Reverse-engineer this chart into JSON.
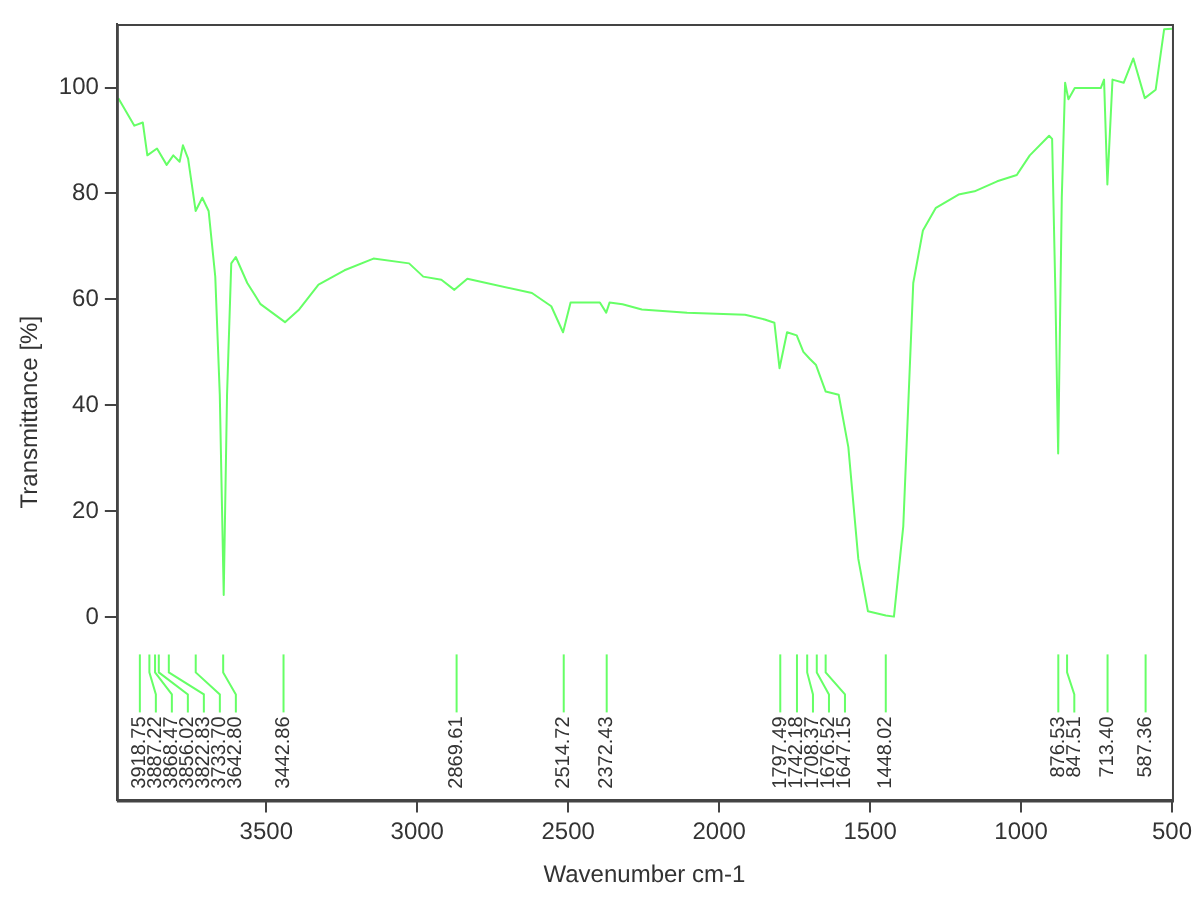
{
  "chart_data": {
    "type": "line",
    "xlabel": "Wavenumber cm-1",
    "ylabel": "Transmittance [%]",
    "xlim": [
      3995,
      500
    ],
    "xticks": [
      3500,
      3000,
      2500,
      2000,
      1500,
      1000,
      500
    ],
    "ylim": [
      -34.6,
      112
    ],
    "yticks": [
      0,
      20,
      40,
      60,
      80,
      100
    ],
    "grid": false,
    "legend": false,
    "marker": "none",
    "line_style": "solid",
    "series": [
      {
        "color": "#66ff66",
        "x": [
          3990,
          3937,
          3909,
          3894,
          3862,
          3830,
          3808,
          3787,
          3776,
          3759,
          3734,
          3712,
          3691,
          3669,
          3654,
          3641,
          3630,
          3616,
          3601,
          3563,
          3519,
          3438,
          3391,
          3327,
          3241,
          3145,
          3027,
          2980,
          2920,
          2877,
          2834,
          2620,
          2556,
          2517,
          2492,
          2395,
          2374,
          2363,
          2320,
          2256,
          2106,
          1914,
          1849,
          1817,
          1800,
          1775,
          1743,
          1721,
          1700,
          1679,
          1647,
          1604,
          1572,
          1539,
          1507,
          1448,
          1421,
          1390,
          1357,
          1325,
          1282,
          1207,
          1154,
          1079,
          1014,
          971,
          907,
          897,
          886,
          877,
          865,
          854,
          843,
          822,
          736,
          725,
          714,
          697,
          660,
          628,
          590,
          554,
          526,
          500
        ],
        "values": [
          98.0,
          92.8,
          93.4,
          87.2,
          88.5,
          85.4,
          87.2,
          86.0,
          89.1,
          86.6,
          76.7,
          79.2,
          76.7,
          64.3,
          42,
          4.2,
          42,
          66.8,
          68.0,
          63.1,
          59.1,
          55.7,
          58.1,
          62.8,
          65.5,
          67.7,
          66.8,
          64.3,
          63.7,
          61.8,
          63.9,
          61.2,
          58.7,
          53.8,
          59.4,
          59.4,
          57.5,
          59.4,
          59.1,
          58.1,
          57.5,
          57.1,
          56.2,
          55.6,
          47.0,
          53.8,
          53.2,
          50.1,
          48.8,
          47.6,
          42.6,
          42.0,
          32.1,
          11.0,
          1.1,
          0.3,
          0.1,
          17.2,
          63.1,
          73.0,
          77.3,
          79.8,
          80.4,
          82.3,
          83.5,
          87.2,
          90.9,
          90.3,
          60.6,
          30.9,
          79.2,
          100.9,
          97.8,
          99.9,
          99.9,
          101.5,
          81.7,
          101.5,
          100.9,
          105.5,
          98.0,
          99.6,
          111.0,
          111.1
        ]
      }
    ],
    "annotations": [
      {
        "text": "3918.75",
        "x": 3918.75
      },
      {
        "text": "3887.22",
        "x": 3887.22
      },
      {
        "text": "3868.47",
        "x": 3868.47
      },
      {
        "text": "3856.02",
        "x": 3856.02
      },
      {
        "text": "3822.83",
        "x": 3822.83
      },
      {
        "text": "3733.70",
        "x": 3733.7
      },
      {
        "text": "3642.80",
        "x": 3642.8
      },
      {
        "text": "3442.86",
        "x": 3442.86
      },
      {
        "text": "2869.61",
        "x": 2869.61
      },
      {
        "text": "2514.72",
        "x": 2514.72
      },
      {
        "text": "2372.43",
        "x": 2372.43
      },
      {
        "text": "1797.49",
        "x": 1797.49
      },
      {
        "text": "1742.18",
        "x": 1742.18
      },
      {
        "text": "1708.37",
        "x": 1708.37
      },
      {
        "text": "1676.52",
        "x": 1676.52
      },
      {
        "text": "1647.15",
        "x": 1647.15
      },
      {
        "text": "1448.02",
        "x": 1448.02
      },
      {
        "text": "876.53",
        "x": 876.53
      },
      {
        "text": "847.51",
        "x": 847.51
      },
      {
        "text": "713.40",
        "x": 713.4
      },
      {
        "text": "587.36",
        "x": 587.36
      }
    ]
  }
}
